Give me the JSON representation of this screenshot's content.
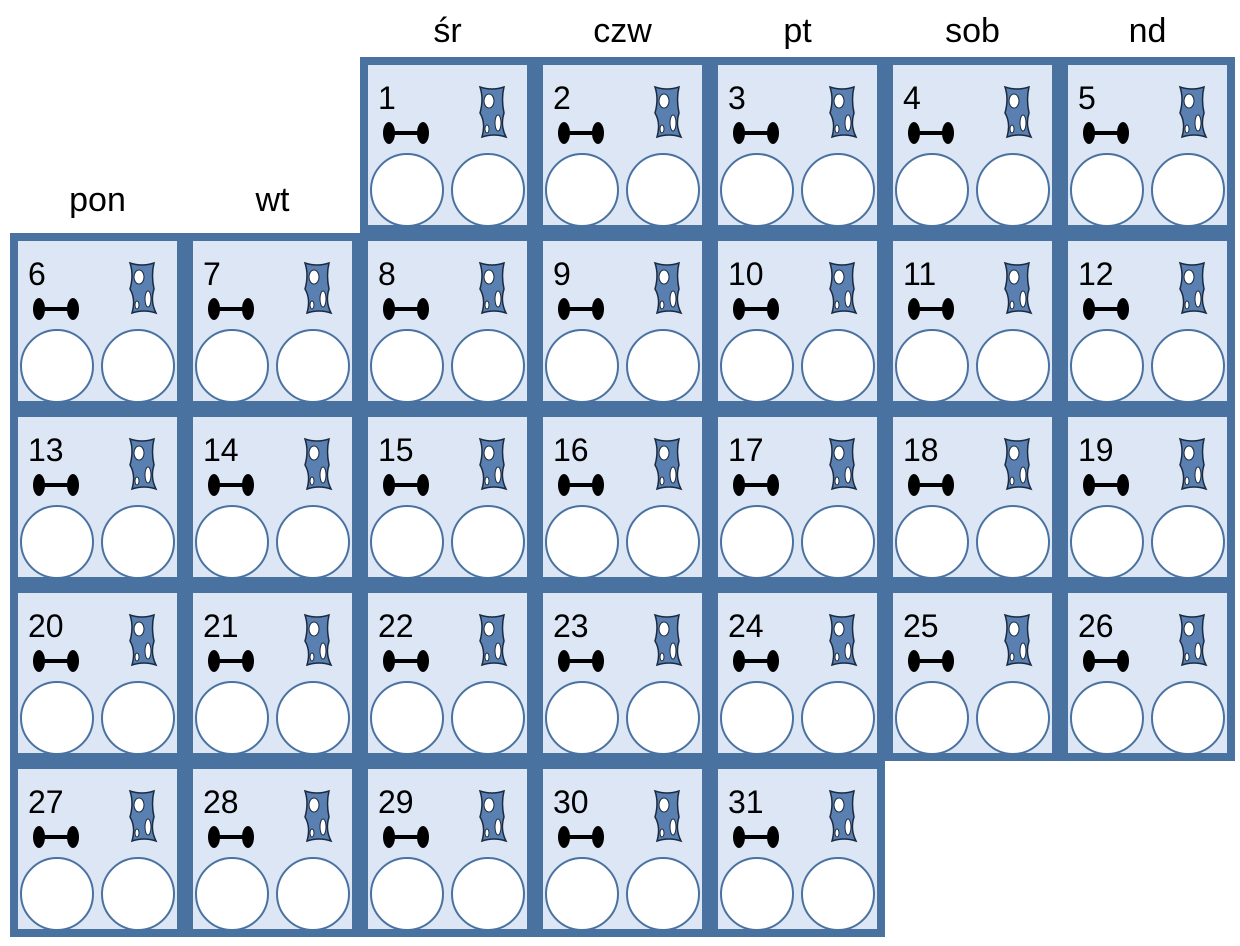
{
  "weekdays": [
    "pon",
    "wt",
    "śr",
    "czw",
    "pt",
    "sob",
    "nd"
  ],
  "days": [
    1,
    2,
    3,
    4,
    5,
    6,
    7,
    8,
    9,
    10,
    11,
    12,
    13,
    14,
    15,
    16,
    17,
    18,
    19,
    20,
    21,
    22,
    23,
    24,
    25,
    26,
    27,
    28,
    29,
    30,
    31
  ]
}
